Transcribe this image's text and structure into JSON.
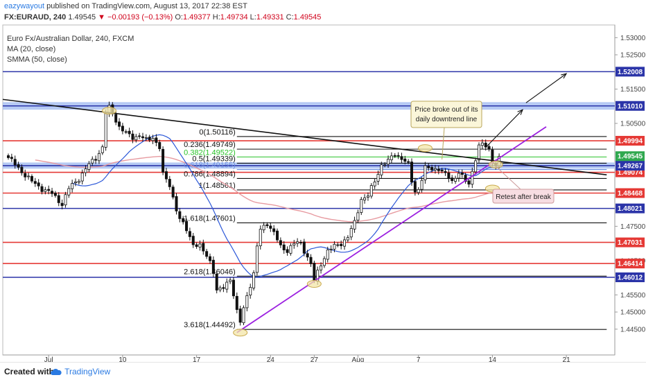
{
  "header": {
    "author": "eazywayout",
    "published": " published on TradingView.com, August 13, 2017 22:38 EST",
    "symbol": "FX:EURAUD, 240",
    "last": "1.49545",
    "change": "−0.00193 (−0.13%)",
    "o_label": "O:",
    "o": "1.49377",
    "h_label": "H:",
    "h": "1.49734",
    "l_label": "L:",
    "l": "1.49331",
    "c_label": "C:",
    "c": "1.49545"
  },
  "legend": {
    "title": "Euro Fx/Australian Dollar, 240, FXCM",
    "ma": "MA (20, close)",
    "smma": "SMMA (50, close)"
  },
  "footer": {
    "created_with": "Created with",
    "brand": "TradingView"
  },
  "colors": {
    "candle": "#111111",
    "red_level": "#e53935",
    "blue_level": "#2b34a8",
    "fib": "#111111",
    "fib_382": "#28c328",
    "fib_618": "#6b8ee0",
    "zone_fill": "#a9c1f2",
    "ma": "#2b57d8",
    "smma": "#e79aa0",
    "trend_up": "#9b1fe0",
    "trend_down": "#111111",
    "highlight": "#f3e6a8"
  },
  "chart_data": {
    "type": "candlestick",
    "title": "Euro Fx/Australian Dollar, 240, FXCM",
    "ylim": [
      1.4395,
      1.5335
    ],
    "x_ticks": [
      {
        "label": "Jul",
        "bar": 12
      },
      {
        "label": "10",
        "bar": 34
      },
      {
        "label": "17",
        "bar": 56
      },
      {
        "label": "24",
        "bar": 78
      },
      {
        "label": "27",
        "bar": 91
      },
      {
        "label": "Aug",
        "bar": 104
      },
      {
        "label": "7",
        "bar": 122
      },
      {
        "label": "14",
        "bar": 144
      },
      {
        "label": "21",
        "bar": 166
      }
    ],
    "y_ticks": [
      "1.53000",
      "1.52500",
      "1.51500",
      "1.50500",
      "1.47500",
      "1.46500",
      "1.45500",
      "1.45000",
      "1.44500"
    ],
    "anchors": [
      [
        0,
        1.495
      ],
      [
        3,
        1.492
      ],
      [
        7,
        1.488
      ],
      [
        10,
        1.486
      ],
      [
        13,
        1.4845
      ],
      [
        16,
        1.4815
      ],
      [
        18,
        1.486
      ],
      [
        21,
        1.489
      ],
      [
        24,
        1.493
      ],
      [
        26,
        1.495
      ],
      [
        28,
        1.498
      ],
      [
        29,
        1.508
      ],
      [
        30,
        1.5095
      ],
      [
        31,
        1.508
      ],
      [
        33,
        1.504
      ],
      [
        35,
        1.502
      ],
      [
        37,
        1.501
      ],
      [
        39,
        1.5015
      ],
      [
        41,
        1.5
      ],
      [
        43,
        1.501
      ],
      [
        45,
        1.498
      ],
      [
        46,
        1.49
      ],
      [
        48,
        1.487
      ],
      [
        50,
        1.48
      ],
      [
        51,
        1.477
      ],
      [
        53,
        1.474
      ],
      [
        55,
        1.47
      ],
      [
        57,
        1.469
      ],
      [
        60,
        1.465
      ],
      [
        61,
        1.462
      ],
      [
        62,
        1.456
      ],
      [
        64,
        1.457
      ],
      [
        66,
        1.46
      ],
      [
        67,
        1.455
      ],
      [
        68,
        1.45
      ],
      [
        69,
        1.447
      ],
      [
        71,
        1.455
      ],
      [
        73,
        1.461
      ],
      [
        74,
        1.469
      ],
      [
        75,
        1.474
      ],
      [
        77,
        1.476
      ],
      [
        79,
        1.473
      ],
      [
        81,
        1.469
      ],
      [
        83,
        1.468
      ],
      [
        85,
        1.47
      ],
      [
        87,
        1.47
      ],
      [
        89,
        1.466
      ],
      [
        90,
        1.464
      ],
      [
        91,
        1.459
      ],
      [
        93,
        1.464
      ],
      [
        95,
        1.468
      ],
      [
        97,
        1.469
      ],
      [
        99,
        1.47
      ],
      [
        101,
        1.472
      ],
      [
        103,
        1.476
      ],
      [
        105,
        1.483
      ],
      [
        107,
        1.484
      ],
      [
        109,
        1.488
      ],
      [
        111,
        1.493
      ],
      [
        113,
        1.494
      ],
      [
        115,
        1.496
      ],
      [
        117,
        1.495
      ],
      [
        119,
        1.493
      ],
      [
        120,
        1.488
      ],
      [
        121,
        1.485
      ],
      [
        122,
        1.486
      ],
      [
        124,
        1.492
      ],
      [
        126,
        1.4915
      ],
      [
        128,
        1.492
      ],
      [
        130,
        1.49
      ],
      [
        132,
        1.488
      ],
      [
        134,
        1.491
      ],
      [
        136,
        1.488
      ],
      [
        137,
        1.487
      ],
      [
        138,
        1.491
      ],
      [
        139,
        1.495
      ],
      [
        140,
        1.4985
      ],
      [
        141,
        1.499
      ],
      [
        143,
        1.497
      ],
      [
        144,
        1.494
      ],
      [
        145,
        1.493
      ],
      [
        146,
        1.495
      ]
    ],
    "ma_period": 20,
    "smma_period": 50,
    "red_levels": [
      {
        "price": 1.49994,
        "label": "1.49994"
      },
      {
        "price": 1.49074,
        "label": "1.49074"
      },
      {
        "price": 1.48468,
        "label": "1.48468"
      },
      {
        "price": 1.47031,
        "label": "1.47031"
      },
      {
        "price": 1.46414,
        "label": "1.46414"
      }
    ],
    "blue_levels": [
      {
        "price": 1.52008,
        "label": "1.52008"
      },
      {
        "price": 1.5101,
        "label": "1.51010"
      },
      {
        "price": 1.49267,
        "label": "1.49267"
      },
      {
        "price": 1.48021,
        "label": "1.48021"
      },
      {
        "price": 1.46012,
        "label": "1.46012"
      }
    ],
    "last_price": {
      "price": 1.49545,
      "label": "1.49545"
    },
    "fib_levels": [
      {
        "label": "0(1.50116)",
        "price": 1.50116
      },
      {
        "label": "0.236(1.49749)",
        "price": 1.49749
      },
      {
        "label": "0.382(1.49522)",
        "price": 1.49522
      },
      {
        "label": "0.5(1.49339)",
        "price": 1.49339
      },
      {
        "label": "0.618(1.49155)",
        "price": 1.49155
      },
      {
        "label": "0.786(1.48894)",
        "price": 1.48894
      },
      {
        "label": "1(1.48561)",
        "price": 1.48561
      },
      {
        "label": "1.618(1.47601)",
        "price": 1.47601
      },
      {
        "label": "2.618(1.46046)",
        "price": 1.46046
      },
      {
        "label": "3.618(1.44492)",
        "price": 1.44492
      }
    ],
    "zones": [
      {
        "from": 1.509,
        "to": 1.5112
      },
      {
        "from": 1.4918,
        "to": 1.4936
      }
    ],
    "downtrend": {
      "from": [
        0,
        1.512
      ],
      "to": [
        178,
        1.49
      ]
    },
    "uptrend": {
      "from": [
        68,
        1.444
      ],
      "to": [
        160,
        1.504
      ]
    },
    "annotations": {
      "breakout": "Price broke out of its daily downtrend line",
      "retest": "Retest after break"
    }
  }
}
